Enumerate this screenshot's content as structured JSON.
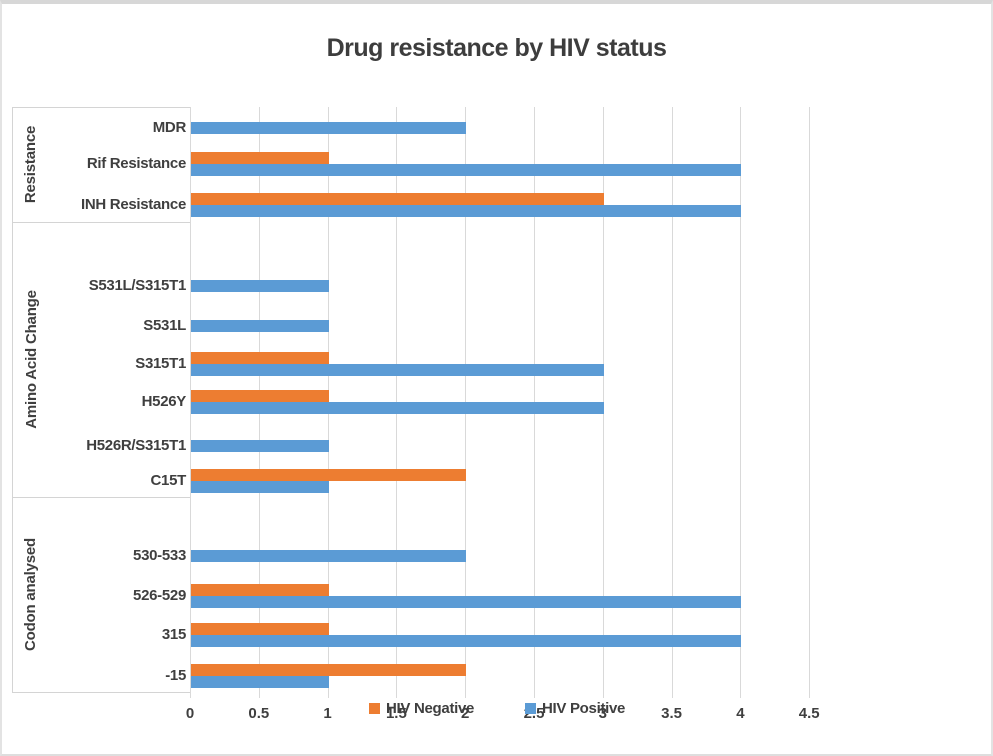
{
  "chart_data": {
    "type": "bar",
    "orientation": "horizontal",
    "title": "Drug resistance by HIV status",
    "grid": true,
    "legend_position": "bottom-center-overlapping-axis-labels",
    "x_axis": {
      "range": [
        0,
        4.5
      ],
      "tick_step": 0.5,
      "tick_labels": [
        "0",
        "0.5",
        "1",
        "1.5",
        "2",
        "2.5",
        "3",
        "3.5",
        "4",
        "4.5"
      ]
    },
    "category_groups": [
      {
        "label": "Resistance",
        "categories": [
          "MDR",
          "Rif Resistance",
          "INH Resistance"
        ]
      },
      {
        "label": "Amino Acid Change",
        "categories": [
          "S531L/S315T1",
          "S531L",
          "S315T1",
          "H526Y",
          "H526R/S315T1",
          "C15T"
        ]
      },
      {
        "label": "Codon analysed",
        "categories": [
          "530-533",
          "526-529",
          "315",
          "-15"
        ]
      }
    ],
    "series": [
      {
        "name": "HIV Negative",
        "color": "#ED7D31",
        "values": [
          [
            0,
            1,
            3
          ],
          [
            0,
            0,
            1,
            1,
            0,
            2
          ],
          [
            0,
            1,
            1,
            2
          ]
        ]
      },
      {
        "name": "HIV Positive",
        "color": "#5B9BD5",
        "values": [
          [
            2,
            4,
            4
          ],
          [
            1,
            1,
            3,
            3,
            1,
            1
          ],
          [
            2,
            4,
            4,
            1
          ]
        ]
      }
    ],
    "colors": {
      "grid": "#D9D9D9",
      "axis_text": "#3F3F3F",
      "frame": "#D9D9D9"
    }
  }
}
